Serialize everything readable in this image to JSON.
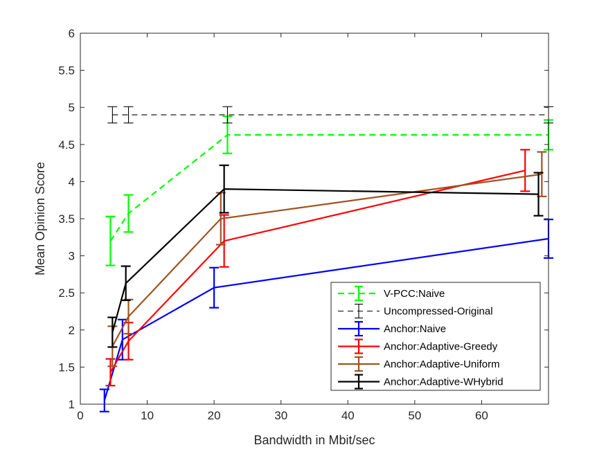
{
  "chart_data": {
    "type": "line",
    "title": "",
    "xlabel": "Bandwidth in Mbit/sec",
    "ylabel": "Mean Opinion Score",
    "xlim": [
      0,
      70
    ],
    "ylim": [
      1,
      6
    ],
    "xticks": [
      "0",
      "10",
      "20",
      "30",
      "40",
      "50",
      "60"
    ],
    "yticks": [
      "1",
      "1.5",
      "2",
      "2.5",
      "3",
      "3.5",
      "4",
      "4.5",
      "5",
      "5.5",
      "6"
    ],
    "grid": false,
    "legend_position": "bottom-right",
    "series": [
      {
        "name": "V-PCC:Naive",
        "color": "#00ff00",
        "style": "dashed",
        "x": [
          4.5,
          7.2,
          22.0,
          70.0
        ],
        "y": [
          3.2,
          3.57,
          4.63,
          4.63
        ],
        "err": [
          0.33,
          0.25,
          0.25,
          0.2
        ]
      },
      {
        "name": "Uncompressed-Original",
        "color": "#000000",
        "style": "dashed-thin",
        "x": [
          4.8,
          7.2,
          22.0,
          70.0
        ],
        "y": [
          4.9,
          4.9,
          4.9,
          4.9
        ],
        "err": [
          0.11,
          0.11,
          0.11,
          0.11
        ]
      },
      {
        "name": "Anchor:Naive",
        "color": "#0000ff",
        "style": "solid",
        "x": [
          3.6,
          6.3,
          20.0,
          70.0
        ],
        "y": [
          1.05,
          1.87,
          2.57,
          3.23
        ],
        "err": [
          0.15,
          0.27,
          0.27,
          0.26
        ]
      },
      {
        "name": "Anchor:Adaptive-Greedy",
        "color": "#ff0000",
        "style": "solid",
        "x": [
          4.5,
          7.2,
          21.5,
          66.5
        ],
        "y": [
          1.43,
          1.85,
          3.2,
          4.15
        ],
        "err": [
          0.18,
          0.25,
          0.35,
          0.28
        ]
      },
      {
        "name": "Anchor:Adaptive-Uniform",
        "color": "#a0521f",
        "style": "solid",
        "x": [
          4.8,
          7.2,
          21.0,
          69.0
        ],
        "y": [
          1.78,
          2.18,
          3.5,
          4.1
        ],
        "err": [
          0.27,
          0.23,
          0.35,
          0.3
        ]
      },
      {
        "name": "Anchor:Adaptive-WHybrid",
        "color": "#000000",
        "style": "solid",
        "x": [
          4.8,
          6.8,
          21.5,
          68.5
        ],
        "y": [
          1.97,
          2.63,
          3.9,
          3.83
        ],
        "err": [
          0.2,
          0.23,
          0.32,
          0.29
        ]
      }
    ]
  }
}
